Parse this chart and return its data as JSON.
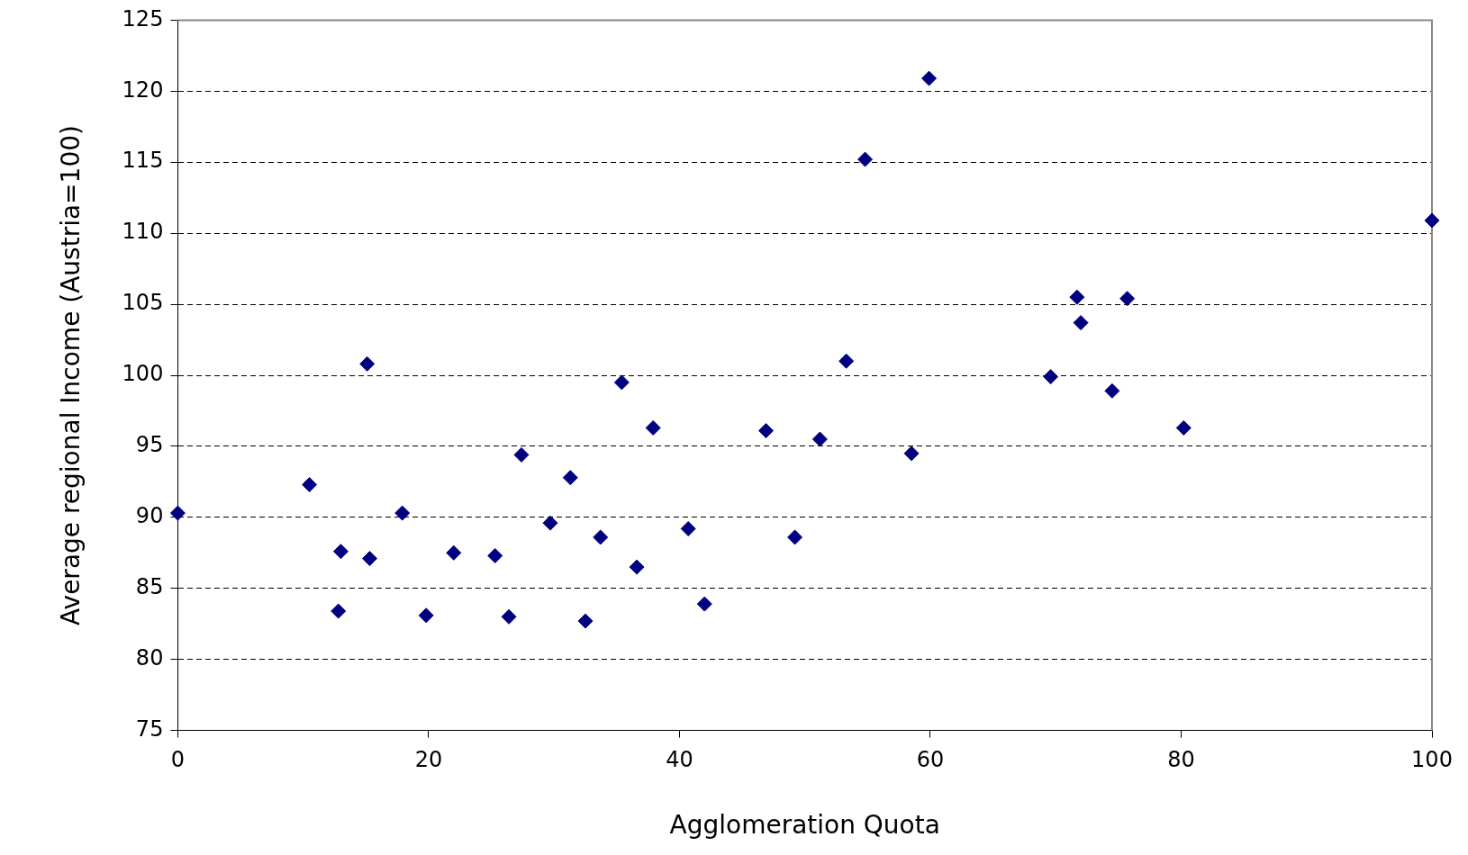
{
  "chart_data": {
    "type": "scatter",
    "xlabel": "Agglomeration Quota",
    "ylabel": "Average regional Income (Austria=100)",
    "x": [
      0,
      10.5,
      13.0,
      12.8,
      15.1,
      15.3,
      17.9,
      19.8,
      22.0,
      25.3,
      26.4,
      27.4,
      29.7,
      31.3,
      32.5,
      33.7,
      35.4,
      36.6,
      37.9,
      40.7,
      42.0,
      46.9,
      49.2,
      51.2,
      53.3,
      54.8,
      58.5,
      59.9,
      69.6,
      71.7,
      72.0,
      74.5,
      75.7,
      80.2,
      100
    ],
    "values": [
      90.3,
      92.3,
      87.6,
      83.4,
      100.8,
      87.1,
      90.3,
      83.1,
      87.5,
      87.3,
      83.0,
      94.4,
      89.6,
      92.8,
      82.7,
      88.6,
      99.5,
      86.5,
      96.3,
      89.2,
      83.9,
      96.1,
      88.6,
      95.5,
      101.0,
      115.2,
      94.5,
      120.9,
      99.9,
      105.5,
      103.7,
      98.9,
      105.4,
      96.3,
      110.9
    ],
    "color": "#000080",
    "marker": "diamond",
    "line_style": "dashed",
    "xlim": [
      0,
      100
    ],
    "xticks": [
      0,
      20,
      40,
      60,
      80,
      100
    ],
    "ylim": [
      75,
      125
    ],
    "yticks": [
      75,
      80,
      85,
      90,
      95,
      100,
      105,
      110,
      115,
      120,
      125
    ],
    "grid": "y",
    "legend": false
  }
}
